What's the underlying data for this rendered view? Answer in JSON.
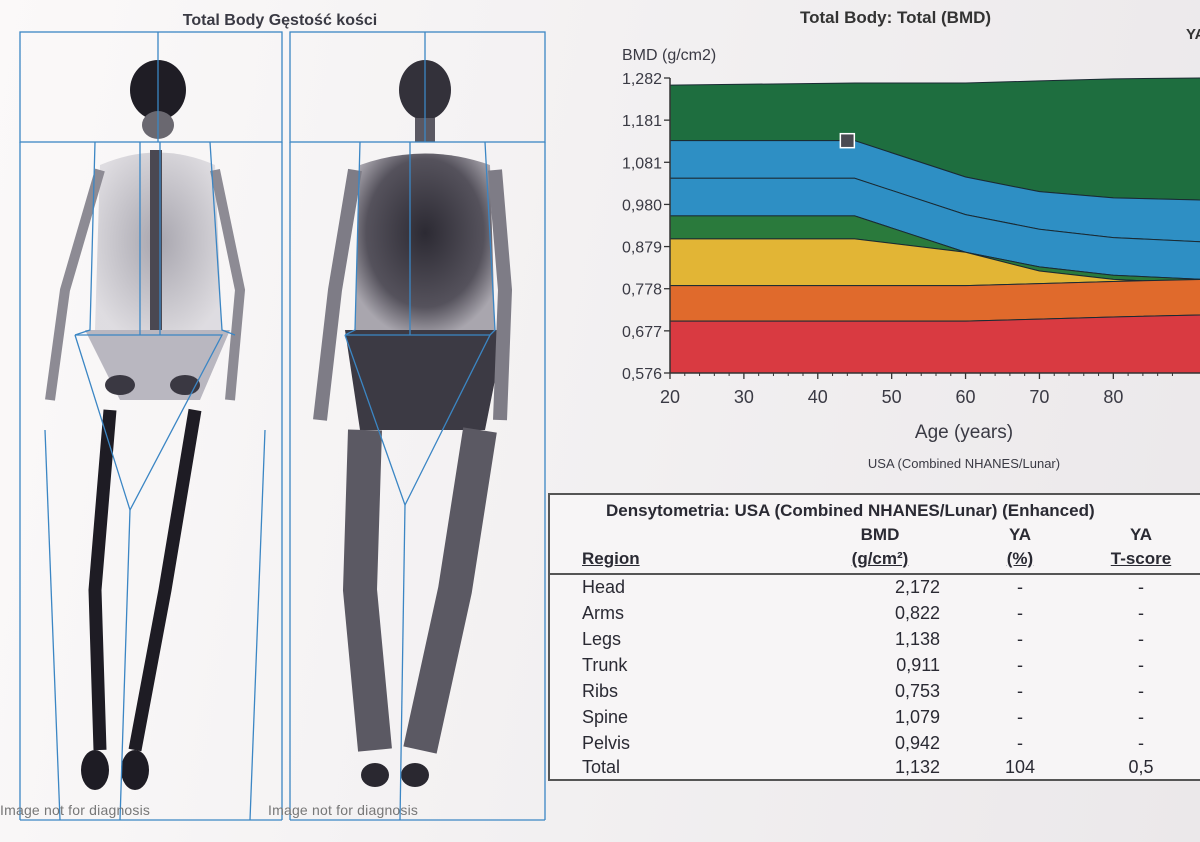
{
  "scan": {
    "title": "Total Body Gęstość kości",
    "left_label": "Image not for diagnosis",
    "right_label": "Image not for diagnosis"
  },
  "chart_header": {
    "title": "Total Body: Total (BMD)",
    "corner_text": "YA"
  },
  "chart_data": {
    "type": "area",
    "title": "Total Body: Total (BMD)",
    "ylabel": "BMD (g/cm2)",
    "xlabel": "Age (years)",
    "subtitle": "USA (Combined NHANES/Lunar)",
    "y_ticks": [
      "1,282",
      "1,181",
      "1,081",
      "0,980",
      "0,879",
      "0,778",
      "0,677",
      "0,576"
    ],
    "x_ticks": [
      "20",
      "30",
      "40",
      "50",
      "60",
      "70",
      "80"
    ],
    "ylim": [
      0.576,
      1.282
    ],
    "xlim": [
      20,
      92
    ],
    "band_boundaries": {
      "age": [
        20,
        45,
        60,
        70,
        80,
        92
      ],
      "upper_edge": [
        1.265,
        1.27,
        1.27,
        1.275,
        1.28,
        1.282
      ],
      "green_top": [
        1.132,
        1.132,
        1.045,
        1.01,
        0.995,
        0.99
      ],
      "blue_mid": [
        1.042,
        1.042,
        0.955,
        0.92,
        0.9,
        0.89
      ],
      "blue_bottom": [
        0.952,
        0.952,
        0.865,
        0.83,
        0.81,
        0.8
      ],
      "green_bottom": [
        0.897,
        0.897,
        0.865,
        0.82,
        0.8,
        0.79
      ],
      "yellow_bottom": [
        0.785,
        0.785,
        0.785,
        0.79,
        0.795,
        0.8
      ],
      "orange_bottom": [
        0.7,
        0.7,
        0.7,
        0.705,
        0.71,
        0.715
      ]
    },
    "band_colors": [
      "#1e6e3f",
      "#2e8fc4",
      "#2e8fc4",
      "#2a7a3c",
      "#e2b535",
      "#e06a2c",
      "#d93a41"
    ],
    "patient_point": {
      "age": 44,
      "bmd": 1.132
    }
  },
  "table": {
    "title": "Densytometria: USA (Combined NHANES/Lunar) (Enhanced)",
    "headers": {
      "region": "Region",
      "bmd_top": "BMD",
      "bmd_bottom": "(g/cm²)",
      "ya_top": "YA",
      "ya_bottom": "(%)",
      "t_top": "YA",
      "t_bottom": "T-score"
    },
    "rows": [
      {
        "region": "Head",
        "bmd": "2,172",
        "ya": "-",
        "t": "-"
      },
      {
        "region": "Arms",
        "bmd": "0,822",
        "ya": "-",
        "t": "-"
      },
      {
        "region": "Legs",
        "bmd": "1,138",
        "ya": "-",
        "t": "-"
      },
      {
        "region": "Trunk",
        "bmd": "0,911",
        "ya": "-",
        "t": "-"
      },
      {
        "region": "Ribs",
        "bmd": "0,753",
        "ya": "-",
        "t": "-"
      },
      {
        "region": "Spine",
        "bmd": "1,079",
        "ya": "-",
        "t": "-"
      },
      {
        "region": "Pelvis",
        "bmd": "0,942",
        "ya": "-",
        "t": "-"
      },
      {
        "region": "Total",
        "bmd": "1,132",
        "ya": "104",
        "t": "0,5"
      }
    ]
  }
}
